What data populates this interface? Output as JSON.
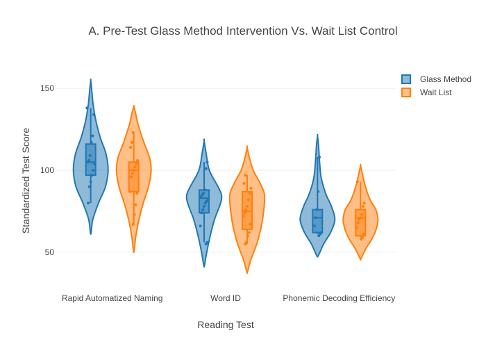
{
  "chart_data": {
    "type": "violin",
    "title": "A. Pre-Test Glass Method Intervention Vs. Wait List Control",
    "xlabel": "Reading Test",
    "ylabel": "Standardized Test Score",
    "categories": [
      "Rapid Automatized Naming",
      "Word ID",
      "Phonemic Decoding Efficiency"
    ],
    "yticks": [
      50,
      100,
      150
    ],
    "ylim": [
      30,
      170
    ],
    "grid": true,
    "legend_position": "top-right",
    "series": [
      {
        "name": "Glass Method",
        "color": "#1f77b4",
        "groups": [
          {
            "min": 62,
            "max": 155,
            "q1": 97,
            "median": 105,
            "q3": 116,
            "whisker_low": 80,
            "whisker_high": 138,
            "points": [
              138,
              134,
              121,
              117,
              109,
              106,
              105,
              104,
              100,
              97,
              93,
              90,
              80
            ],
            "profile": [
              [
                62,
                0.02
              ],
              [
                70,
                0.12
              ],
              [
                80,
                0.45
              ],
              [
                90,
                0.85
              ],
              [
                100,
                1.0
              ],
              [
                110,
                0.88
              ],
              [
                120,
                0.55
              ],
              [
                130,
                0.3
              ],
              [
                140,
                0.14
              ],
              [
                150,
                0.05
              ],
              [
                155,
                0.0
              ]
            ]
          },
          {
            "min": 42,
            "max": 118,
            "q1": 74,
            "median": 83,
            "q3": 88,
            "whisker_low": 56,
            "whisker_high": 105,
            "points": [
              105,
              101,
              88,
              86,
              85,
              84,
              82,
              81,
              80,
              78,
              76,
              74,
              66,
              56,
              55
            ],
            "profile": [
              [
                42,
                0.02
              ],
              [
                50,
                0.15
              ],
              [
                60,
                0.35
              ],
              [
                70,
                0.6
              ],
              [
                80,
                0.95
              ],
              [
                85,
                1.0
              ],
              [
                90,
                0.8
              ],
              [
                100,
                0.3
              ],
              [
                110,
                0.12
              ],
              [
                118,
                0.0
              ]
            ]
          },
          {
            "min": 48,
            "max": 121,
            "q1": 62,
            "median": 71,
            "q3": 76,
            "whisker_low": 61,
            "whisker_high": 108,
            "points": [
              108,
              87,
              76,
              71,
              66,
              62,
              61,
              60
            ],
            "profile": [
              [
                48,
                0.05
              ],
              [
                55,
                0.35
              ],
              [
                62,
                0.75
              ],
              [
                70,
                1.0
              ],
              [
                78,
                0.8
              ],
              [
                85,
                0.5
              ],
              [
                95,
                0.22
              ],
              [
                105,
                0.12
              ],
              [
                115,
                0.06
              ],
              [
                121,
                0.0
              ]
            ]
          }
        ]
      },
      {
        "name": "Wait List",
        "color": "#ff7f0e",
        "groups": [
          {
            "min": 51,
            "max": 139,
            "q1": 87,
            "median": 100,
            "q3": 105,
            "whisker_low": 67,
            "whisker_high": 123,
            "points": [
              123,
              117,
              114,
              106,
              104,
              102,
              100,
              98,
              96,
              87,
              86,
              79,
              73,
              67
            ],
            "profile": [
              [
                51,
                0.02
              ],
              [
                60,
                0.12
              ],
              [
                70,
                0.3
              ],
              [
                80,
                0.55
              ],
              [
                90,
                0.85
              ],
              [
                100,
                1.0
              ],
              [
                108,
                0.9
              ],
              [
                118,
                0.55
              ],
              [
                128,
                0.25
              ],
              [
                135,
                0.1
              ],
              [
                139,
                0.0
              ]
            ]
          },
          {
            "min": 38,
            "max": 114,
            "q1": 64,
            "median": 75,
            "q3": 87,
            "whisker_low": 55,
            "whisker_high": 97,
            "points": [
              97,
              92,
              89,
              86,
              82,
              78,
              76,
              74,
              72,
              67,
              62,
              60,
              56,
              55
            ],
            "profile": [
              [
                38,
                0.02
              ],
              [
                45,
                0.2
              ],
              [
                55,
                0.55
              ],
              [
                65,
                0.8
              ],
              [
                75,
                0.95
              ],
              [
                85,
                1.0
              ],
              [
                92,
                0.75
              ],
              [
                100,
                0.35
              ],
              [
                108,
                0.12
              ],
              [
                114,
                0.0
              ]
            ]
          },
          {
            "min": 46,
            "max": 103,
            "q1": 60,
            "median": 71,
            "q3": 76,
            "whisker_low": 59,
            "whisker_high": 93,
            "points": [
              93,
              80,
              78,
              73,
              71,
              70,
              68,
              65,
              61,
              59,
              58
            ],
            "profile": [
              [
                46,
                0.02
              ],
              [
                52,
                0.3
              ],
              [
                58,
                0.65
              ],
              [
                64,
                0.9
              ],
              [
                70,
                1.0
              ],
              [
                76,
                0.88
              ],
              [
                82,
                0.55
              ],
              [
                90,
                0.28
              ],
              [
                98,
                0.1
              ],
              [
                103,
                0.0
              ]
            ]
          }
        ]
      }
    ]
  }
}
